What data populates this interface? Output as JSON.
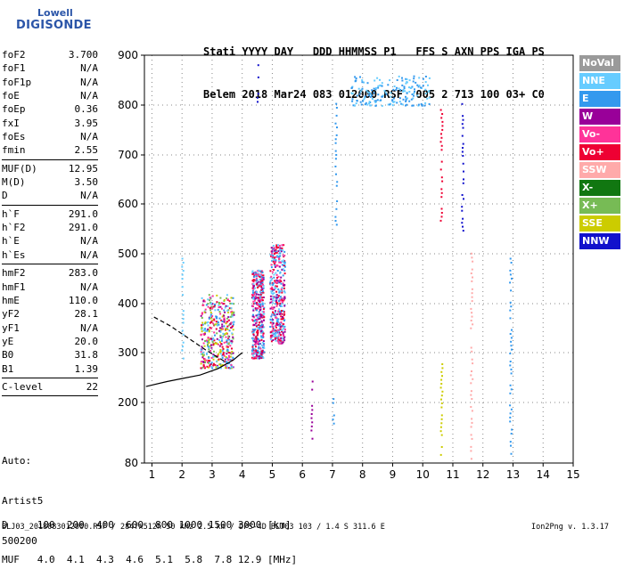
{
  "logo": {
    "line1": "Lowell",
    "line2": "DIGISONDE"
  },
  "header": {
    "line1": "Stati YYYY DAY   DDD HHMMSS P1   FFS S AXN PPS IGA PS",
    "line2": "Belem 2018 Mar24 083 012000 RSF  005 2 713 100 03+ C0"
  },
  "params_group1": [
    {
      "k": "foF2",
      "v": "3.700"
    },
    {
      "k": "foF1",
      "v": "N/A"
    },
    {
      "k": "foF1p",
      "v": "N/A"
    },
    {
      "k": "foE",
      "v": "N/A"
    },
    {
      "k": "foEp",
      "v": "0.36"
    },
    {
      "k": "fxI",
      "v": "3.95"
    },
    {
      "k": "foEs",
      "v": "N/A"
    },
    {
      "k": "fmin",
      "v": "2.55"
    }
  ],
  "params_group2": [
    {
      "k": "MUF(D)",
      "v": "12.95"
    },
    {
      "k": "M(D)",
      "v": "3.50"
    },
    {
      "k": "D",
      "v": "N/A"
    }
  ],
  "params_group3": [
    {
      "k": "h`F",
      "v": "291.0"
    },
    {
      "k": "h`F2",
      "v": "291.0"
    },
    {
      "k": "h`E",
      "v": "N/A"
    },
    {
      "k": "h`Es",
      "v": "N/A"
    }
  ],
  "params_group4": [
    {
      "k": "hmF2",
      "v": "283.0"
    },
    {
      "k": "hmF1",
      "v": "N/A"
    },
    {
      "k": "hmE",
      "v": "110.0"
    },
    {
      "k": "yF2",
      "v": "28.1"
    },
    {
      "k": "yF1",
      "v": "N/A"
    },
    {
      "k": "yE",
      "v": "20.0"
    },
    {
      "k": "B0",
      "v": "31.8"
    },
    {
      "k": "B1",
      "v": "1.39"
    }
  ],
  "params_group5": [
    {
      "k": "C-level",
      "v": "22"
    }
  ],
  "autoscaling": {
    "line1": "Auto:",
    "line2": "Artist5",
    "line3": "500200"
  },
  "legend": [
    {
      "label": "NoVal",
      "color": "#9a9a9a"
    },
    {
      "label": "NNE",
      "color": "#66ccff"
    },
    {
      "label": "E",
      "color": "#3399ee"
    },
    {
      "label": "W",
      "color": "#990099"
    },
    {
      "label": "Vo-",
      "color": "#ff3399"
    },
    {
      "label": "Vo+",
      "color": "#ee0033"
    },
    {
      "label": "SSW",
      "color": "#ffaaaa"
    },
    {
      "label": "X-",
      "color": "#117711"
    },
    {
      "label": "X+",
      "color": "#77bb55"
    },
    {
      "label": "SSE",
      "color": "#cccc00"
    },
    {
      "label": "NNW",
      "color": "#1111cc"
    }
  ],
  "bottom_table": {
    "line1": "D     100  200  400  600  800 1000 1500 3000 [km]",
    "line2": "MUF   4.0  4.1  4.3  4.6  5.1  5.8  7.8 12.9 [MHz]"
  },
  "footer": {
    "left": "BLJ03_2018083012000.RSF / 284fx512h 50 kHz 2.5 km / DPS-4D BLJ03 103 / 1.4 S 311.6 E",
    "right": "Ion2Png v. 1.3.17"
  },
  "chart_data": {
    "type": "scatter",
    "x_range": [
      0.75,
      15
    ],
    "y_range": [
      80,
      900
    ],
    "x_ticks": [
      1,
      2,
      3,
      4,
      5,
      6,
      7,
      8,
      9,
      10,
      11,
      12,
      13,
      14,
      15
    ],
    "y_ticks": [
      80,
      200,
      300,
      400,
      500,
      600,
      700,
      800,
      900
    ],
    "grid": true,
    "echo_clusters": [
      {
        "f": [
          2.6,
          3.7
        ],
        "h": [
          270,
          420
        ],
        "colors": [
          "Vo+",
          "Vo-",
          "W",
          "NNE",
          "E",
          "X+",
          "SSE"
        ],
        "density": "high"
      },
      {
        "f": [
          4.3,
          4.7
        ],
        "h": [
          290,
          470
        ],
        "colors": [
          "Vo+",
          "Vo-",
          "E",
          "NNE",
          "W"
        ],
        "density": "high"
      },
      {
        "f": [
          4.9,
          5.4
        ],
        "h": [
          320,
          520
        ],
        "colors": [
          "Vo+",
          "Vo-",
          "W",
          "E",
          "NNE"
        ],
        "density": "high"
      },
      {
        "f": [
          7.6,
          10.2
        ],
        "h": [
          800,
          860
        ],
        "colors": [
          "E",
          "NNE"
        ],
        "density": "medium"
      }
    ],
    "vertical_streaks": [
      {
        "f": 2.0,
        "h": [
          290,
          500
        ],
        "color": "NNE"
      },
      {
        "f": 4.5,
        "h": [
          800,
          890
        ],
        "color": "NNW"
      },
      {
        "f": 6.3,
        "h": [
          130,
          260
        ],
        "color": "W"
      },
      {
        "f": 7.0,
        "h": [
          160,
          225
        ],
        "color": "E"
      },
      {
        "f": 7.1,
        "h": [
          560,
          820
        ],
        "color": "E"
      },
      {
        "f": 10.6,
        "h": [
          90,
          310
        ],
        "color": "SSE"
      },
      {
        "f": 10.6,
        "h": [
          560,
          800
        ],
        "color": "Vo+"
      },
      {
        "f": 11.3,
        "h": [
          540,
          820
        ],
        "color": "NNW"
      },
      {
        "f": 11.6,
        "h": [
          90,
          510
        ],
        "color": "SSW"
      },
      {
        "f": 12.9,
        "h": [
          100,
          500
        ],
        "color": "E"
      }
    ],
    "profile_curve": [
      [
        4.0,
        300
      ],
      [
        3.7,
        285
      ],
      [
        3.2,
        268
      ],
      [
        2.6,
        255
      ],
      [
        2.0,
        248
      ],
      [
        1.5,
        242
      ],
      [
        0.8,
        232
      ]
    ],
    "profile_dashed": [
      [
        3.4,
        283
      ],
      [
        2.8,
        305
      ],
      [
        2.2,
        330
      ],
      [
        1.6,
        355
      ],
      [
        1.0,
        375
      ]
    ]
  }
}
